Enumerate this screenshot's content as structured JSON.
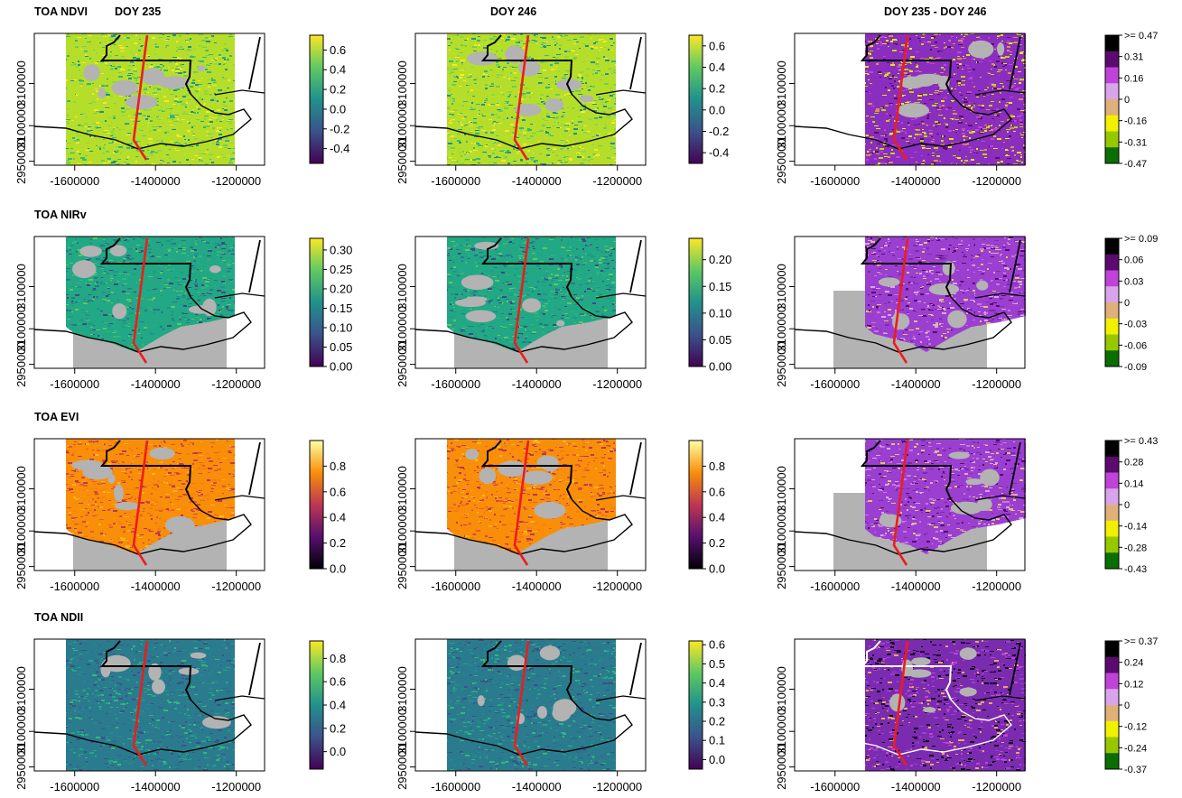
{
  "rows": [
    {
      "title": "TOA NDVI",
      "panels": [
        {
          "title": "DOY 235",
          "palette": "viridis",
          "legend": [
            "0.6",
            "0.4",
            "0.2",
            "0.0",
            "-0.2",
            "-0.4"
          ],
          "lgmin": -0.55,
          "lgmax": 0.75,
          "hasGreyFill": false
        },
        {
          "title": "DOY 246",
          "palette": "viridis",
          "legend": [
            "0.6",
            "0.4",
            "0.2",
            "0.0",
            "-0.2",
            "-0.4"
          ],
          "lgmin": -0.5,
          "lgmax": 0.7,
          "hasGreyFill": false
        },
        {
          "title": "DOY 235 - DOY 246",
          "palette": "diff",
          "legend": [
            ">= 0.47",
            "0.31",
            "0.16",
            "0",
            "-0.16",
            "-0.31",
            "-0.47"
          ],
          "hasGreyFill": false
        }
      ]
    },
    {
      "title": "TOA NIRv",
      "panels": [
        {
          "title": "",
          "palette": "viridis",
          "legend": [
            "0.30",
            "0.25",
            "0.20",
            "0.15",
            "0.10",
            "0.05",
            "0.00"
          ],
          "lgmin": 0.0,
          "lgmax": 0.33,
          "hasGreyFill": true
        },
        {
          "title": "",
          "palette": "viridis",
          "legend": [
            "0.20",
            "0.15",
            "0.10",
            "0.05",
            "0.00"
          ],
          "lgmin": 0.0,
          "lgmax": 0.24,
          "hasGreyFill": true
        },
        {
          "title": "",
          "palette": "diff",
          "legend": [
            ">= 0.09",
            "0.06",
            "0.03",
            "0",
            "-0.03",
            "-0.06",
            "-0.09"
          ],
          "hasGreyFill": true
        }
      ]
    },
    {
      "title": "TOA EVI",
      "panels": [
        {
          "title": "",
          "palette": "inferno",
          "legend": [
            "0.8",
            "0.6",
            "0.4",
            "0.2",
            "0.0"
          ],
          "lgmin": 0.0,
          "lgmax": 1.0,
          "hasGreyFill": true
        },
        {
          "title": "",
          "palette": "inferno",
          "legend": [
            "0.8",
            "0.6",
            "0.4",
            "0.2",
            "0.0"
          ],
          "lgmin": 0.0,
          "lgmax": 1.0,
          "hasGreyFill": true
        },
        {
          "title": "",
          "palette": "diff",
          "legend": [
            ">= 0.43",
            "0.28",
            "0.14",
            "0",
            "-0.14",
            "-0.28",
            "-0.43"
          ],
          "hasGreyFill": true
        }
      ]
    },
    {
      "title": "TOA NDII",
      "panels": [
        {
          "title": "",
          "palette": "viridis",
          "legend": [
            "0.8",
            "0.6",
            "0.4",
            "0.2",
            "0.0"
          ],
          "lgmin": -0.15,
          "lgmax": 0.95,
          "hasGreyFill": false
        },
        {
          "title": "",
          "palette": "viridis",
          "legend": [
            "0.6",
            "0.5",
            "0.4",
            "0.3",
            "0.2",
            "0.1",
            "0.0"
          ],
          "lgmin": -0.05,
          "lgmax": 0.62,
          "hasGreyFill": false
        },
        {
          "title": "",
          "palette": "diff",
          "legend": [
            ">= 0.37",
            "0.24",
            "0.12",
            "0",
            "-0.12",
            "-0.24",
            "-0.37"
          ],
          "hasGreyFill": false
        }
      ]
    }
  ],
  "axis": {
    "x_ticks": [
      "-1600000",
      "-1400000",
      "-1200000"
    ],
    "y_ticks": [
      "2950000",
      "3100000",
      "3100000"
    ]
  },
  "colors": {
    "viridis": [
      "#440154",
      "#3b528b",
      "#21918c",
      "#5ec962",
      "#fde725"
    ],
    "inferno": [
      "#000004",
      "#57106e",
      "#bc3754",
      "#f98e09",
      "#fcffa4"
    ],
    "diff": [
      "#000000",
      "#5b0a6e",
      "#c042d8",
      "#d8a5ea",
      "#e0b07a",
      "#f0f000",
      "#96c800",
      "#0a6e00"
    ],
    "grey": "#b3b3b3",
    "red_line": "#ee1c1c"
  }
}
